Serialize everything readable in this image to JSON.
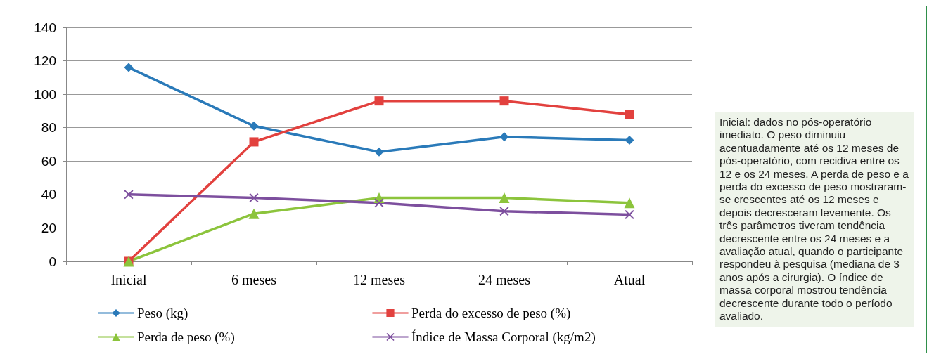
{
  "chart_data": {
    "type": "line",
    "categories": [
      "Inicial",
      "6 meses",
      "12 meses",
      "24 meses",
      "Atual"
    ],
    "series": [
      {
        "name": "Peso (kg)",
        "color": "#2a7ab9",
        "marker": "diamond",
        "values": [
          116,
          81,
          65.5,
          74.5,
          72.5
        ]
      },
      {
        "name": "Perda do excesso de peso (%)",
        "color": "#e2413e",
        "marker": "square",
        "values": [
          0,
          71.5,
          96,
          96,
          88
        ]
      },
      {
        "name": "Perda de peso (%)",
        "color": "#8cc43c",
        "marker": "triangle",
        "values": [
          0,
          28.5,
          38,
          38,
          35
        ]
      },
      {
        "name": "Índice de Massa Corporal (kg/m2)",
        "color": "#7d4f9e",
        "marker": "cross",
        "values": [
          40,
          38,
          35,
          30,
          28
        ]
      }
    ],
    "ylim": [
      0,
      140
    ],
    "yticks": [
      0,
      20,
      40,
      60,
      80,
      100,
      120,
      140
    ],
    "grid": "y",
    "legend": "bottom",
    "line_style": "solid",
    "annotations": [
      "Inicial: dados no pós-operatório imediato. O peso diminuiu acentuadamente até os 12 meses de pós-operatório, com recidiva entre os 12 e os 24 meses. A perda de peso e a perda do excesso de peso mostraram-se crescentes até os 12 meses e depois decresceram levemente. Os três parâmetros tiveram tendência decrescente entre os 24 meses e a avaliação atual, quando o participante respondeu à pesquisa (mediana de 3 anos após a cirurgia). O índice de massa corporal mostrou tendência decrescente durante todo o período avaliado."
    ]
  }
}
